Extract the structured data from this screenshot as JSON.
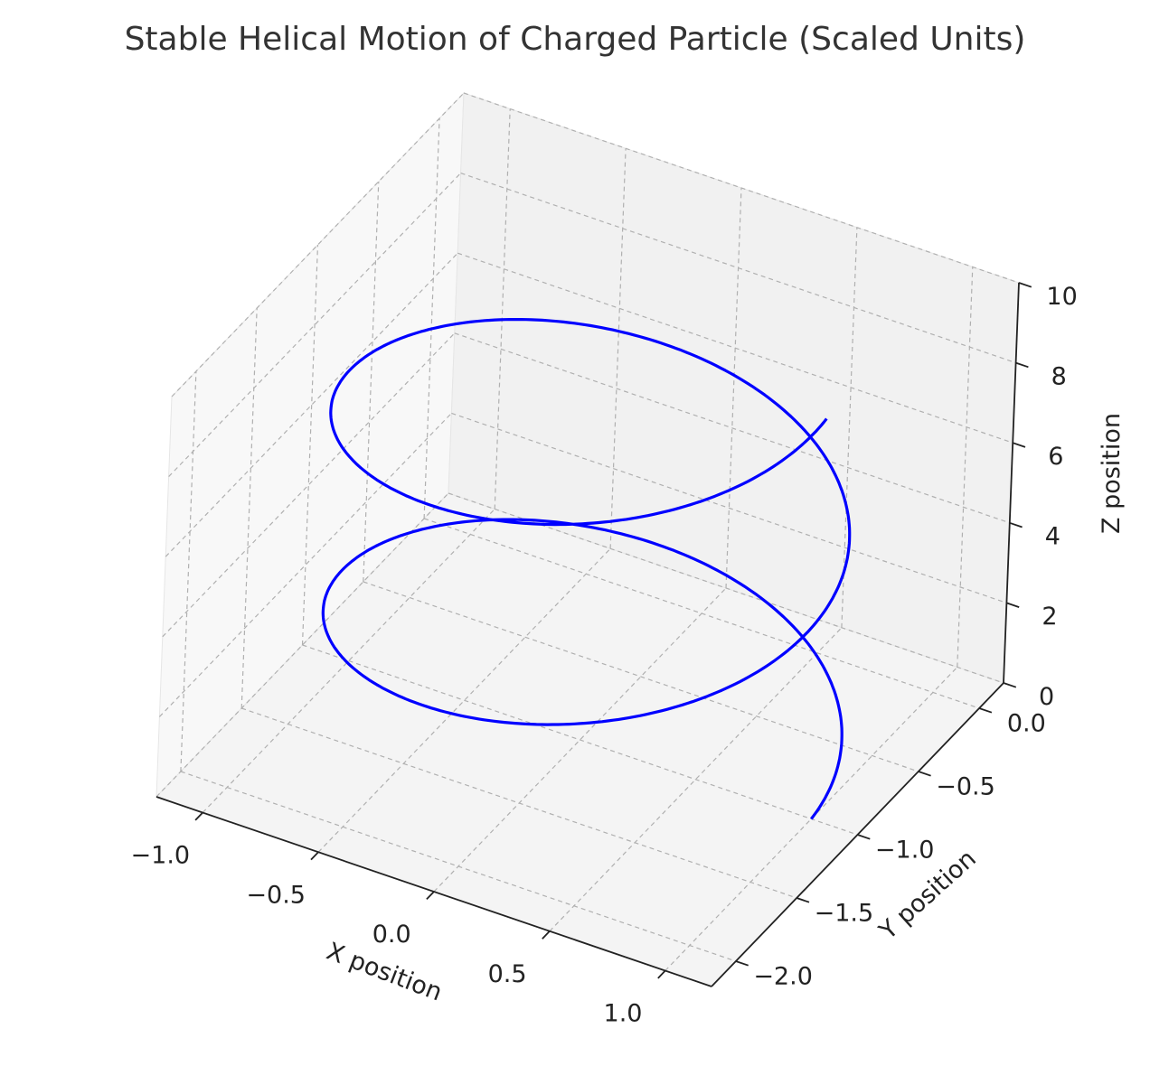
{
  "chart_data": {
    "type": "line",
    "projection": "3d",
    "title": "Stable Helical Motion of Charged Particle (Scaled Units)",
    "xlabel": "X position",
    "ylabel": "Y position",
    "zlabel": "Z position",
    "xlim": [
      -1.2,
      1.2
    ],
    "ylim": [
      -2.2,
      0.2
    ],
    "zlim": [
      0,
      10
    ],
    "x_ticks": [
      -1.0,
      -0.5,
      0.0,
      0.5,
      1.0
    ],
    "x_tick_labels": [
      "−1.0",
      "−0.5",
      "0.0",
      "0.5",
      "1.0"
    ],
    "y_ticks": [
      -2.0,
      -1.5,
      -1.0,
      -0.5,
      0.0
    ],
    "y_tick_labels": [
      "−2.0",
      "−1.5",
      "−1.0",
      "−0.5",
      "0.0"
    ],
    "z_ticks": [
      0,
      2,
      4,
      6,
      8,
      10
    ],
    "z_tick_labels": [
      "0",
      "2",
      "4",
      "6",
      "8",
      "10"
    ],
    "grid": true,
    "series": [
      {
        "color": "#0000ff",
        "curve": "helix",
        "helix": {
          "radius": 1.0,
          "center_x": 0.0,
          "center_y": -1.0,
          "turns": 2,
          "z_start": 0,
          "z_end": 10
        }
      }
    ]
  },
  "colors": {
    "pane_left": "#f8f8f8",
    "pane_back": "#f1f1f1",
    "pane_floor": "#f4f4f4"
  }
}
